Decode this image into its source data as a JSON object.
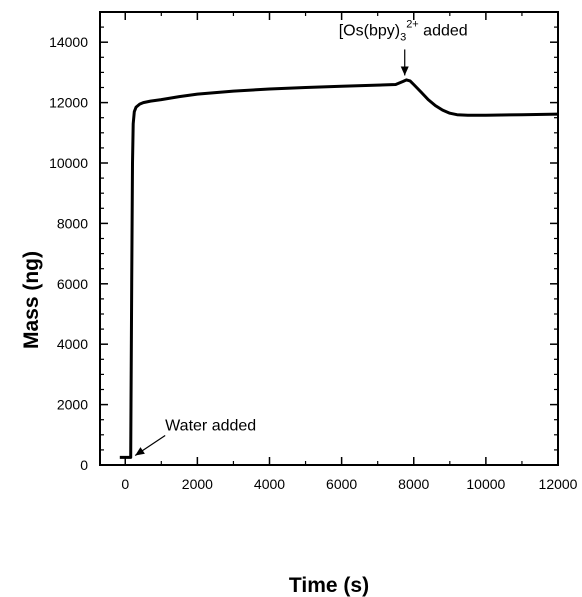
{
  "chart_data": {
    "type": "line",
    "title": "",
    "xlabel": "Time (s)",
    "ylabel": "Mass (ng)",
    "xlim": [
      -700,
      12000
    ],
    "ylim": [
      0,
      15000
    ],
    "xticks": [
      0,
      2000,
      4000,
      6000,
      8000,
      10000,
      12000
    ],
    "yticks": [
      0,
      2000,
      4000,
      6000,
      8000,
      10000,
      12000,
      14000
    ],
    "xtick_labels": [
      "0",
      "2000",
      "4000",
      "6000",
      "8000",
      "10000",
      "12000"
    ],
    "ytick_labels": [
      "0",
      "2000",
      "4000",
      "6000",
      "8000",
      "10000",
      "12000",
      "14000"
    ],
    "grid": false,
    "legend": "none",
    "series": [
      {
        "color": "#000000",
        "x": [
          -150,
          150,
          160,
          180,
          200,
          220,
          250,
          300,
          400,
          500,
          700,
          1000,
          1500,
          2000,
          3000,
          4000,
          5000,
          6000,
          7000,
          7500,
          7700,
          7800,
          7900,
          8000,
          8200,
          8400,
          8600,
          8800,
          9000,
          9200,
          9500,
          10000,
          11000,
          12000
        ],
        "y": [
          250,
          250,
          2000,
          6000,
          10000,
          11300,
          11700,
          11850,
          11950,
          12000,
          12050,
          12100,
          12200,
          12280,
          12380,
          12450,
          12500,
          12540,
          12580,
          12600,
          12700,
          12750,
          12720,
          12600,
          12350,
          12100,
          11900,
          11750,
          11650,
          11600,
          11580,
          11580,
          11600,
          11620
        ]
      }
    ],
    "annotations": [
      {
        "text": "Water added",
        "x": 220,
        "y": 250
      },
      {
        "text_main": "[Os(bpy)",
        "text_sub": "3",
        "text_sup": "2+",
        "text_tail": " added",
        "x": 7750,
        "y": 12800
      }
    ]
  }
}
